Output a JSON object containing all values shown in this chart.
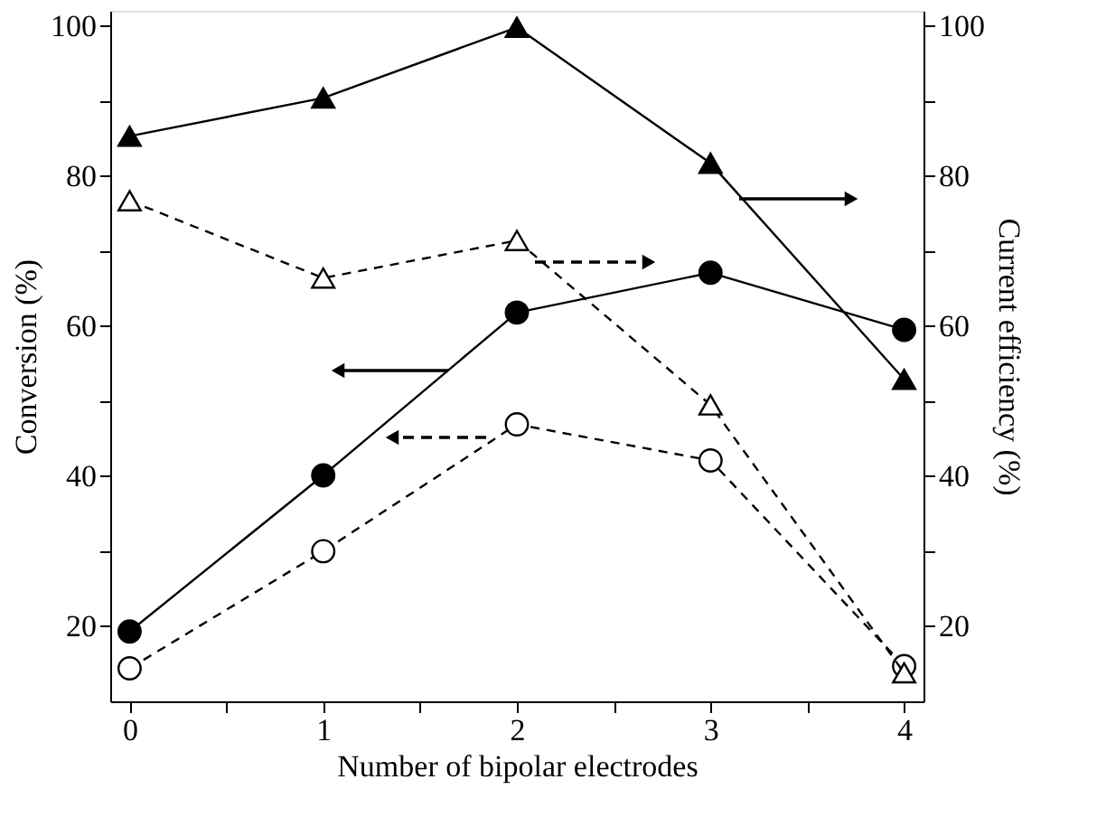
{
  "chart_data": {
    "type": "line",
    "xlabel": "Number of bipolar electrodes",
    "ylabel": "Conversion (%)",
    "y2label": "Current efficiency (%)",
    "x": [
      0,
      1,
      2,
      3,
      4
    ],
    "xlim": [
      -0.1,
      4.1
    ],
    "xticks": [
      0,
      {
        "value": 0.5,
        "label": null
      },
      1,
      {
        "value": 1.5,
        "label": null
      },
      2,
      {
        "value": 2.5,
        "label": null
      },
      3,
      {
        "value": 3.5,
        "label": null
      },
      4
    ],
    "ylim": [
      10,
      102
    ],
    "yticks": [
      20,
      {
        "value": 30,
        "label": null
      },
      40,
      {
        "value": 50,
        "label": null
      },
      60,
      {
        "value": 70,
        "label": null
      },
      80,
      {
        "value": 90,
        "label": null
      },
      100
    ],
    "y2lim": [
      10,
      102
    ],
    "y2ticks": [
      20,
      {
        "value": 30,
        "label": null
      },
      40,
      {
        "value": 50,
        "label": null
      },
      60,
      {
        "value": 70,
        "label": null
      },
      80,
      {
        "value": 90,
        "label": null
      },
      100
    ],
    "legend": false,
    "grid": false,
    "series": [
      {
        "color": "#000000",
        "marker": "circle",
        "line_style": "solid",
        "values": [
          19.3,
          40.1,
          61.8,
          67.1,
          59.5
        ]
      },
      {
        "color": "#000000",
        "marker": "circle",
        "line_style": "dashed",
        "values": [
          14.4,
          30,
          46.9,
          42.1,
          14.7
        ]
      },
      {
        "color": "#000000",
        "marker": "triangle",
        "line_style": "solid",
        "axis": "y2",
        "values": [
          85.3,
          90.4,
          99.8,
          81.7,
          52.9
        ]
      },
      {
        "color": "#000000",
        "marker": "triangle",
        "line_style": "dashed",
        "axis": "y2",
        "values": [
          76.7,
          66.4,
          71.4,
          49.5,
          13.8
        ]
      }
    ]
  }
}
